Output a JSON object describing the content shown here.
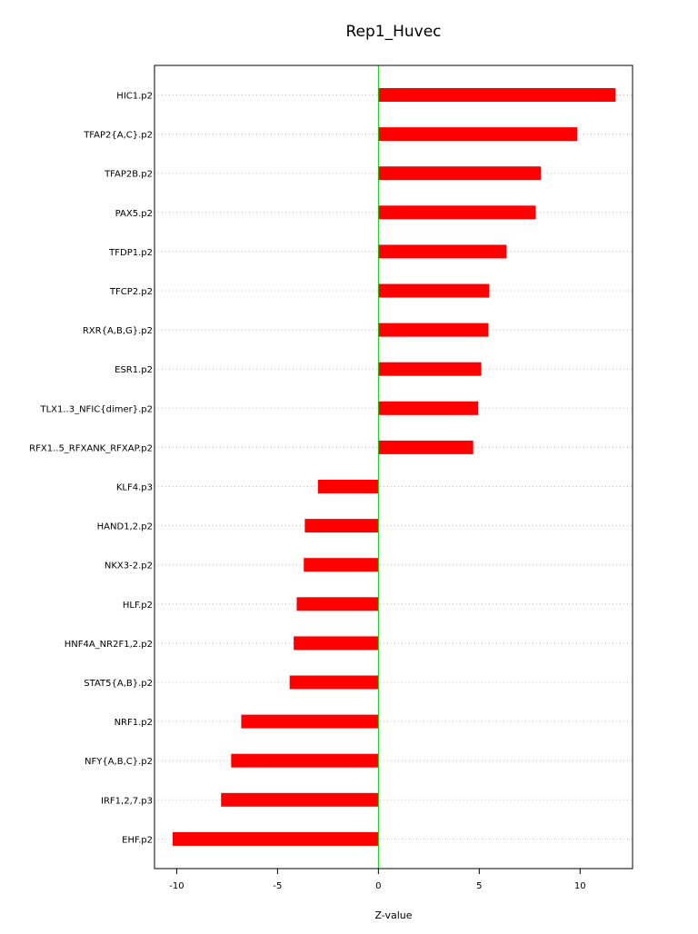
{
  "chart_data": {
    "type": "bar",
    "orientation": "horizontal",
    "title": "Rep1_Huvec",
    "xlabel": "Z-value",
    "ylabel": "",
    "xlim": [
      -11.1,
      12.6
    ],
    "xticks": [
      -10,
      -5,
      0,
      5,
      10
    ],
    "xtick_labels": [
      "-10",
      "-5",
      "0",
      "5",
      "10"
    ],
    "grid": true,
    "categories": [
      "HIC1.p2",
      "TFAP2{A,C}.p2",
      "TFAP2B.p2",
      "PAX5.p2",
      "TFDP1.p2",
      "TFCP2.p2",
      "RXR{A,B,G}.p2",
      "ESR1.p2",
      "TLX1..3_NFIC{dimer}.p2",
      "RFX1..5_RFXANK_RFXAP.p2",
      "KLF4.p3",
      "HAND1,2.p2",
      "NKX3-2.p2",
      "HLF.p2",
      "HNF4A_NR2F1,2.p2",
      "STAT5{A,B}.p2",
      "NRF1.p2",
      "NFY{A,B,C}.p2",
      "IRF1,2,7.p3",
      "EHF.p2"
    ],
    "values": [
      11.75,
      9.85,
      8.05,
      7.8,
      6.35,
      5.5,
      5.45,
      5.1,
      4.95,
      4.7,
      -3.0,
      -3.65,
      -3.7,
      -4.05,
      -4.2,
      -4.4,
      -6.8,
      -7.3,
      -7.8,
      -10.2
    ],
    "colors": {
      "bar": "#ff0000",
      "zero_line": "#00cc00",
      "grid": "#bbbbbb",
      "axis": "#000000",
      "text": "#000000"
    }
  }
}
